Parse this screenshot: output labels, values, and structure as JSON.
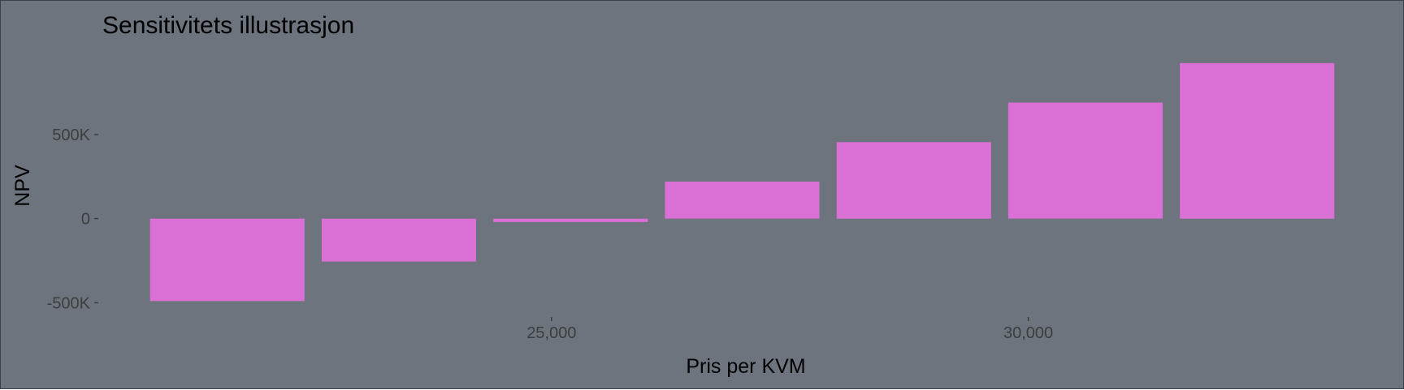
{
  "chart_data": {
    "type": "bar",
    "title": "Sensitivitets illustrasjon",
    "xlabel": "Pris per KVM",
    "ylabel": "NPV",
    "x": [
      21600,
      23400,
      25200,
      27000,
      28800,
      30600,
      32400
    ],
    "values": [
      -490000,
      -255000,
      -20000,
      220000,
      455000,
      690000,
      925000
    ],
    "xticks": [
      {
        "value": 25000,
        "label": "25,000"
      },
      {
        "value": 30000,
        "label": "30,000"
      }
    ],
    "yticks": [
      {
        "value": 500000,
        "label": "500K"
      },
      {
        "value": 0,
        "label": "0"
      },
      {
        "value": -500000,
        "label": "-500K"
      }
    ],
    "xlim": [
      20290,
      33710
    ],
    "ylim": [
      -585000,
      1030000
    ],
    "grid": false,
    "legend": "none",
    "bar_color": "#da70d6",
    "background_color": "#6d747d"
  }
}
